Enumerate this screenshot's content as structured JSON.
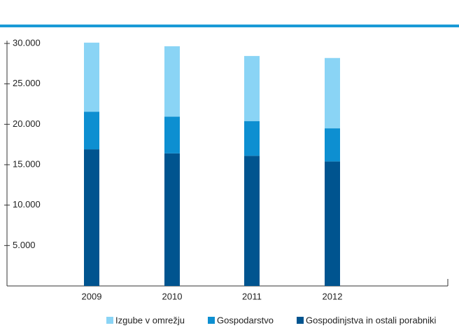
{
  "chart_data": {
    "type": "stacked_bar",
    "categories": [
      "2009",
      "2010",
      "2011",
      "2012"
    ],
    "series": [
      {
        "name": "Gospodinjstva in ostali porabniki",
        "color": "#00548f",
        "values": [
          16900,
          16400,
          16100,
          15400
        ]
      },
      {
        "name": "Gospodarstvo",
        "color": "#0d8fd1",
        "values": [
          4650,
          4550,
          4300,
          4100
        ]
      },
      {
        "name": "Izgube v omrežju",
        "color": "#8ad4f5",
        "values": [
          8550,
          8700,
          8050,
          8700
        ]
      }
    ],
    "ylim": [
      0,
      30000
    ],
    "yticks": [
      {
        "value": 5000,
        "label": "5.000"
      },
      {
        "value": 10000,
        "label": "10.000"
      },
      {
        "value": 15000,
        "label": "15.000"
      },
      {
        "value": 20000,
        "label": "20.000"
      },
      {
        "value": 25000,
        "label": "25.000"
      },
      {
        "value": 30000,
        "label": "30.000"
      }
    ],
    "legend": "bottom-right"
  }
}
